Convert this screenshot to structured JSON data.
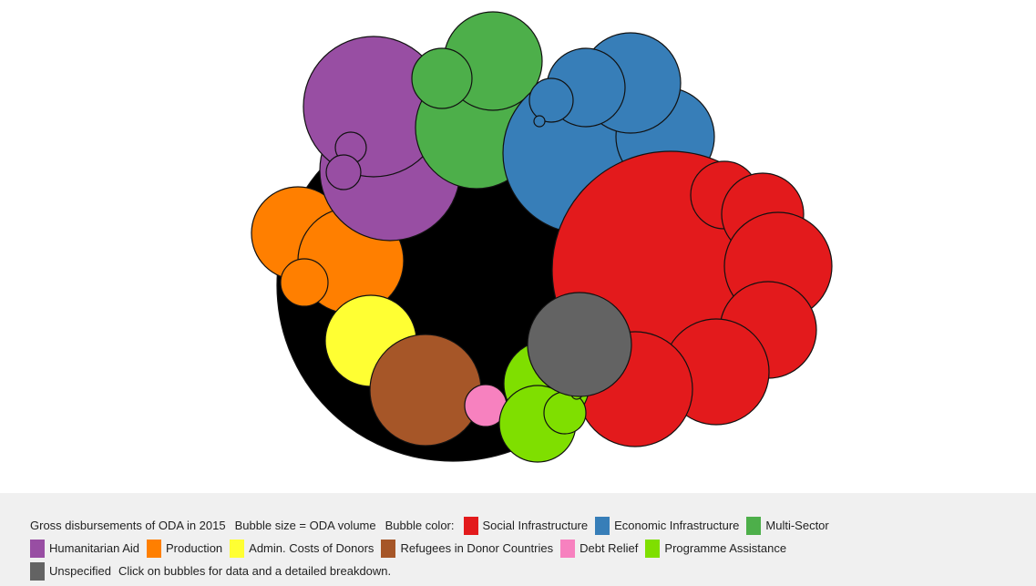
{
  "chart_data": {
    "type": "bubble",
    "year": "2015",
    "size_measure": "ODA volume",
    "total_bubble": {
      "name": "Total ODA",
      "color": "#000000"
    },
    "categories": [
      {
        "name": "Social Infrastructure",
        "color": "#e31a1c"
      },
      {
        "name": "Economic Infrastructure",
        "color": "#377eb8"
      },
      {
        "name": "Multi-Sector",
        "color": "#4daf4a"
      },
      {
        "name": "Humanitarian Aid",
        "color": "#984ea3"
      },
      {
        "name": "Production",
        "color": "#ff7f00"
      },
      {
        "name": "Admin. Costs of Donors",
        "color": "#ffff33"
      },
      {
        "name": "Refugees in Donor Countries",
        "color": "#a65628"
      },
      {
        "name": "Debt Relief",
        "color": "#f781bf"
      },
      {
        "name": "Programme Assistance",
        "color": "#7fdf00"
      },
      {
        "name": "Unspecified",
        "color": "#636363"
      }
    ]
  },
  "legend": {
    "intro": "Gross disbursements of ODA in 2015",
    "size_note": "Bubble size = ODA volume",
    "color_note": "Bubble color:",
    "click_note": "Click on bubbles for data and a detailed breakdown."
  }
}
